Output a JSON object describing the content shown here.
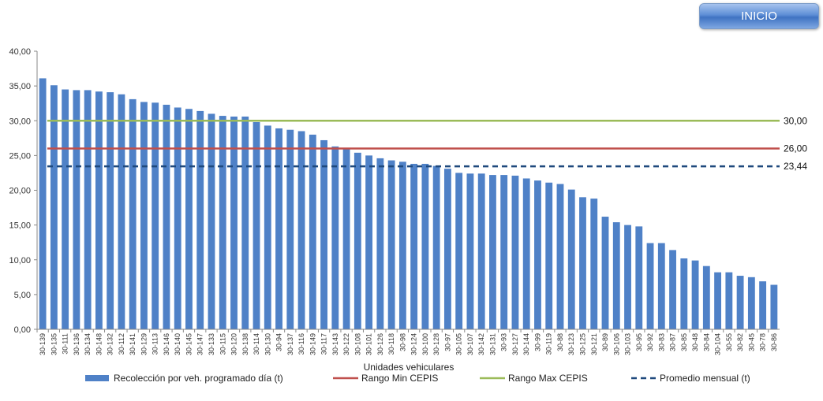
{
  "header": {
    "inicio_label": "INICIO"
  },
  "colors": {
    "bar": "#4f81c7",
    "min_line": "#c0504d",
    "max_line": "#9bbb59",
    "avg_line": "#1f497d"
  },
  "chart_data": {
    "type": "bar",
    "xlabel": "Unidades vehiculares",
    "ylabel": "",
    "ylim": [
      0,
      40
    ],
    "yticks": [
      "0,00",
      "5,00",
      "10,00",
      "15,00",
      "20,00",
      "25,00",
      "30,00",
      "35,00",
      "40,00"
    ],
    "categories": [
      "30-139",
      "30-135",
      "30-111",
      "30-136",
      "30-134",
      "30-148",
      "30-132",
      "30-112",
      "30-141",
      "30-129",
      "30-113",
      "30-146",
      "30-140",
      "30-145",
      "30-147",
      "30-133",
      "30-115",
      "30-120",
      "30-138",
      "30-114",
      "30-130",
      "30-94",
      "30-137",
      "30-116",
      "30-149",
      "30-117",
      "30-143",
      "30-122",
      "30-108",
      "30-101",
      "30-126",
      "30-118",
      "30-98",
      "30-124",
      "30-100",
      "30-128",
      "30-97",
      "30-105",
      "30-107",
      "30-142",
      "30-131",
      "30-93",
      "30-127",
      "30-144",
      "30-99",
      "30-119",
      "30-88",
      "30-123",
      "30-125",
      "30-121",
      "30-89",
      "30-106",
      "30-103",
      "30-95",
      "30-92",
      "30-83",
      "30-87",
      "30-85",
      "30-48",
      "30-84",
      "30-104",
      "30-55",
      "30-82",
      "30-45",
      "30-78",
      "30-86"
    ],
    "series": [
      {
        "name": "Recolección por veh. programado día (t)",
        "type": "bar",
        "values": [
          36.1,
          35.1,
          34.5,
          34.4,
          34.4,
          34.2,
          34.1,
          33.8,
          33.1,
          32.7,
          32.6,
          32.3,
          31.9,
          31.7,
          31.4,
          31.0,
          30.7,
          30.6,
          30.6,
          29.8,
          29.3,
          28.9,
          28.7,
          28.5,
          28.0,
          27.2,
          26.3,
          26.0,
          25.4,
          25.0,
          24.6,
          24.3,
          24.1,
          23.8,
          23.8,
          23.5,
          23.1,
          22.5,
          22.4,
          22.4,
          22.2,
          22.2,
          22.1,
          21.7,
          21.4,
          21.1,
          20.9,
          20.1,
          19.0,
          18.8,
          16.2,
          15.4,
          15.0,
          14.8,
          12.4,
          12.4,
          11.4,
          10.2,
          9.9,
          9.1,
          8.2,
          8.2,
          7.7,
          7.5,
          6.9,
          6.4
        ]
      },
      {
        "name": "Rango Min CEPIS",
        "type": "line",
        "value": 26.0,
        "label": "26,00"
      },
      {
        "name": "Rango Max CEPIS",
        "type": "line",
        "value": 30.0,
        "label": "30,00"
      },
      {
        "name": "Promedio mensual (t)",
        "type": "dashed-line",
        "value": 23.44,
        "label": "23,44"
      }
    ],
    "grid": false,
    "legend_position": "bottom"
  }
}
